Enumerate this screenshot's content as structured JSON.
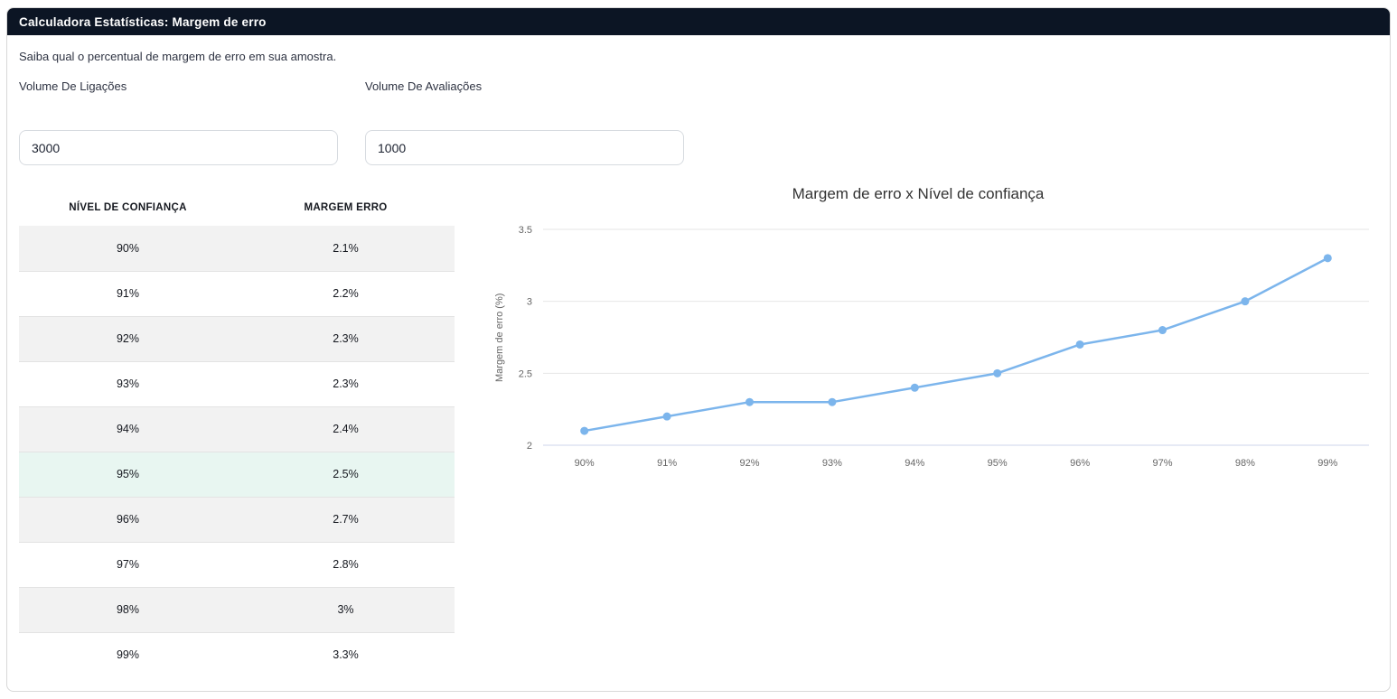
{
  "header": {
    "title": "Calculadora Estatísticas: Margem de erro"
  },
  "intro_text": "Saiba qual o percentual de margem de erro em sua amostra.",
  "inputs": {
    "calls": {
      "label": "Volume De Ligações",
      "value": "3000"
    },
    "evaluations": {
      "label": "Volume De Avaliações",
      "value": "1000"
    }
  },
  "table": {
    "columns": [
      "NÍVEL DE CONFIANÇA",
      "MARGEM ERRO"
    ],
    "rows": [
      {
        "confidence": "90%",
        "margin": "2.1%"
      },
      {
        "confidence": "91%",
        "margin": "2.2%"
      },
      {
        "confidence": "92%",
        "margin": "2.3%"
      },
      {
        "confidence": "93%",
        "margin": "2.3%"
      },
      {
        "confidence": "94%",
        "margin": "2.4%"
      },
      {
        "confidence": "95%",
        "margin": "2.5%",
        "highlighted": true
      },
      {
        "confidence": "96%",
        "margin": "2.7%"
      },
      {
        "confidence": "97%",
        "margin": "2.8%"
      },
      {
        "confidence": "98%",
        "margin": "3%"
      },
      {
        "confidence": "99%",
        "margin": "3.3%"
      }
    ]
  },
  "chart_data": {
    "type": "line",
    "title": "Margem de erro x Nível de confiança",
    "xlabel": "",
    "ylabel": "Margem de erro (%)",
    "categories": [
      "90%",
      "91%",
      "92%",
      "93%",
      "94%",
      "95%",
      "96%",
      "97%",
      "98%",
      "99%"
    ],
    "values": [
      2.1,
      2.2,
      2.3,
      2.3,
      2.4,
      2.5,
      2.7,
      2.8,
      3.0,
      3.3
    ],
    "ylim": [
      2,
      3.5
    ],
    "yticks": [
      2,
      2.5,
      3,
      3.5
    ],
    "grid": true,
    "legend": false,
    "line_color": "#7cb5ec",
    "marker_color": "#7cb5ec",
    "grid_color": "#e6e6e6",
    "axis_line_color": "#ccd6eb",
    "tick_label_color": "#666666"
  },
  "colors": {
    "header_bg": "#0c1524",
    "row_stripe": "#f2f2f2",
    "row_highlight": "#e8f6f1",
    "card_border": "#d8d8d8"
  }
}
